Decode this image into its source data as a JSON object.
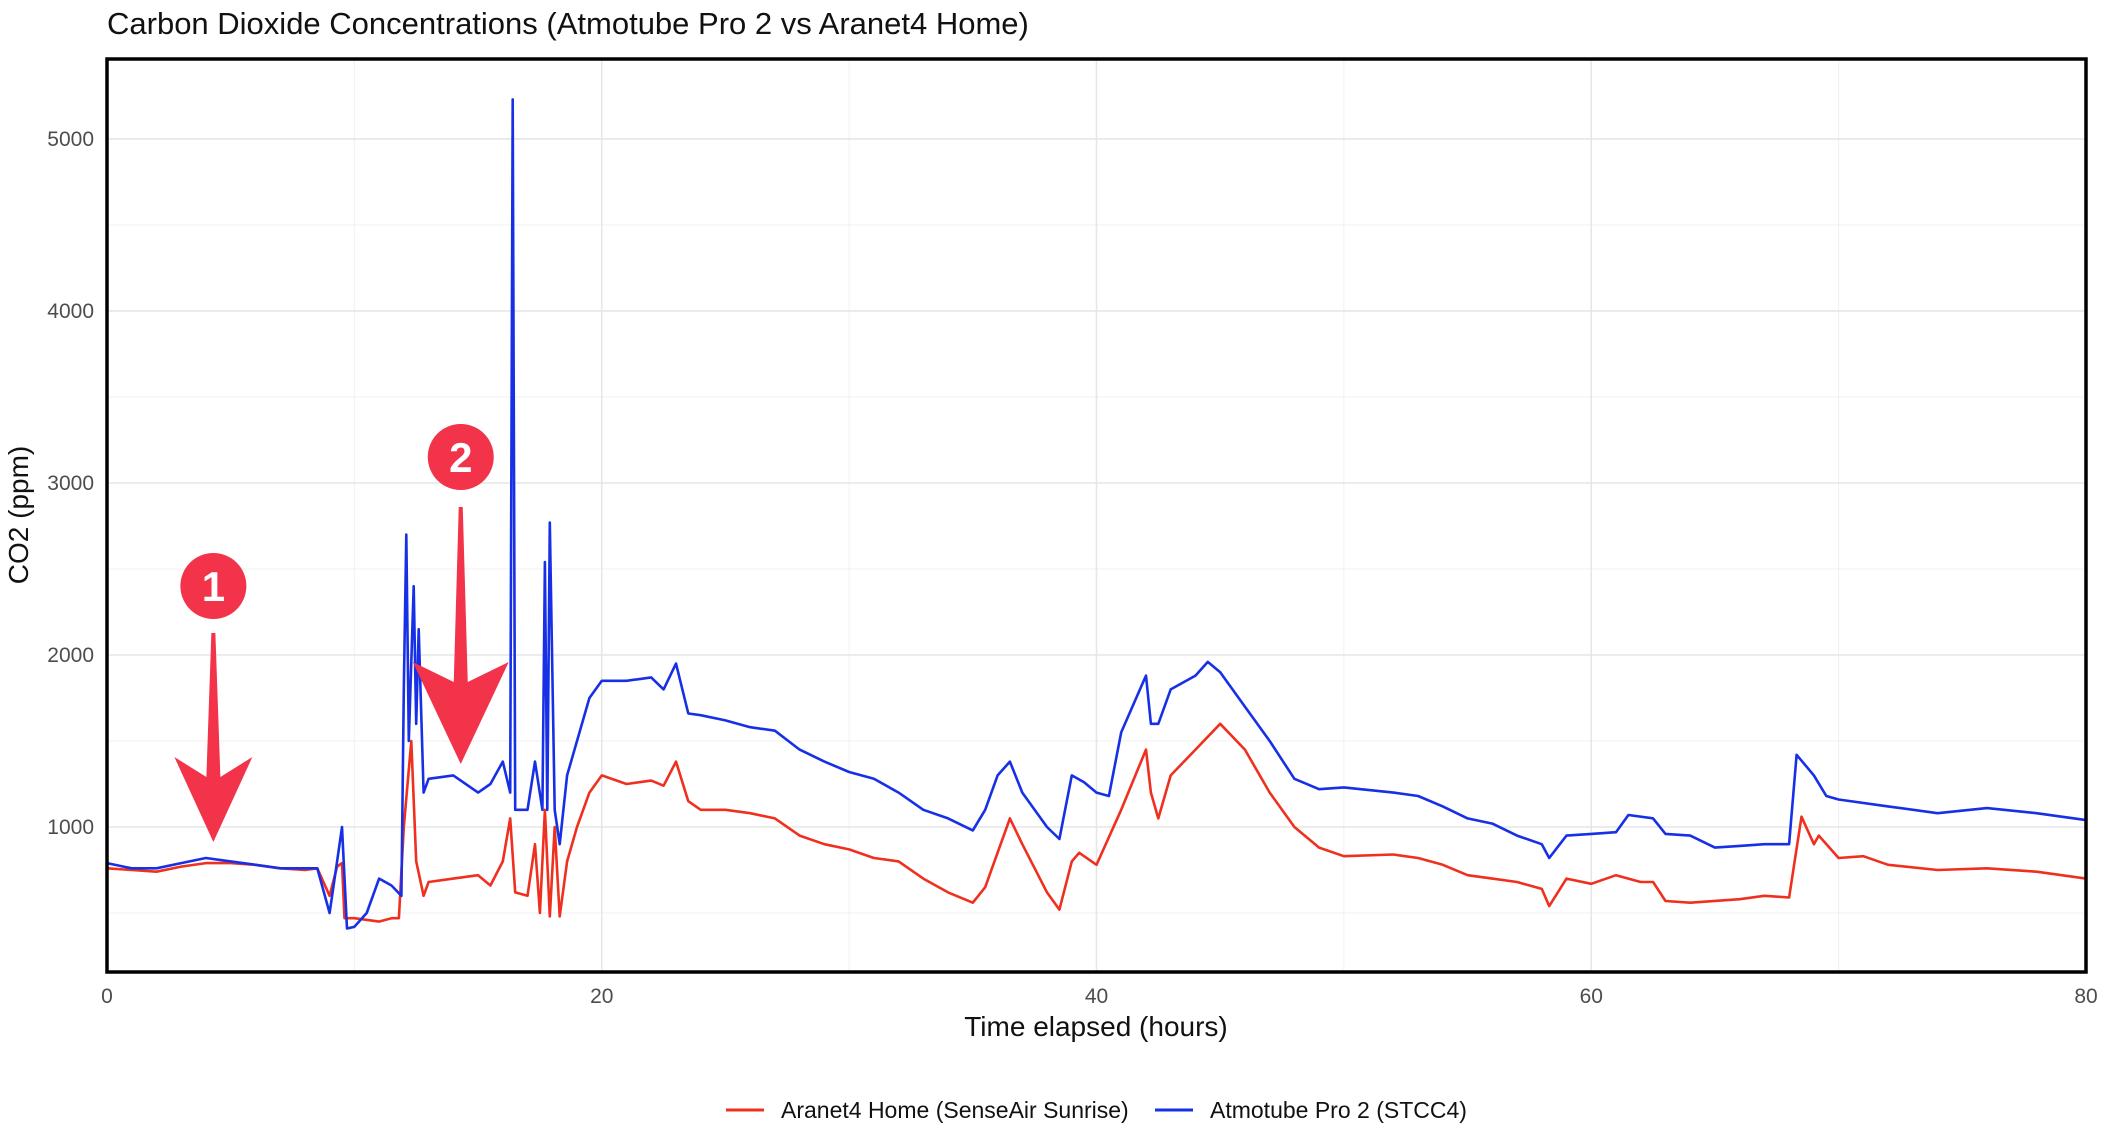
{
  "chart_data": {
    "type": "line",
    "title": "Carbon Dioxide Concentrations (Atmotube Pro 2 vs Aranet4 Home)",
    "xlabel": "Time elapsed (hours)",
    "ylabel": "CO2 (ppm)",
    "xlim": [
      0,
      80
    ],
    "ylim": [
      157,
      5465
    ],
    "xticks": [
      "0",
      "20",
      "40",
      "60",
      "80"
    ],
    "yticks": [
      "1000",
      "2000",
      "3000",
      "4000",
      "5000"
    ],
    "grid": true,
    "legend_position": "bottom",
    "annotations": [
      {
        "label": "1",
        "x": 4.3,
        "color": "#f2334a"
      },
      {
        "label": "2",
        "x": 14.3,
        "color": "#f2334a"
      }
    ],
    "series": [
      {
        "name": "Aranet4 Home (SenseAir Sunrise)",
        "color": "#f0301f",
        "x": [
          0,
          1,
          2,
          3,
          4,
          5,
          6,
          7,
          8,
          8.5,
          9,
          9.3,
          9.5,
          9.6,
          10,
          11,
          11.5,
          11.8,
          12,
          12.3,
          12.5,
          12.8,
          13,
          14,
          15,
          15.5,
          16,
          16.3,
          16.5,
          17,
          17.3,
          17.5,
          17.7,
          17.9,
          18.1,
          18.3,
          18.6,
          19,
          19.5,
          20,
          21,
          22,
          22.5,
          23,
          23.5,
          24,
          25,
          26,
          27,
          28,
          29,
          30,
          31,
          32,
          33,
          34,
          35,
          35.5,
          36.5,
          37,
          38,
          38.5,
          39,
          39.3,
          40,
          41,
          42,
          42.2,
          42.5,
          43,
          44,
          45,
          46,
          47,
          48,
          49,
          50,
          52,
          53,
          54,
          55,
          56,
          57,
          58,
          58.3,
          59,
          60,
          61,
          62,
          62.5,
          63,
          64,
          66,
          67,
          68,
          68.5,
          69,
          69.2,
          70,
          71,
          72,
          74,
          76,
          78,
          80
        ],
        "y": [
          760,
          750,
          740,
          770,
          790,
          790,
          780,
          760,
          750,
          760,
          600,
          770,
          790,
          470,
          470,
          450,
          470,
          470,
          1000,
          1500,
          800,
          600,
          680,
          700,
          720,
          660,
          800,
          1050,
          620,
          600,
          900,
          500,
          1100,
          480,
          1000,
          480,
          800,
          1000,
          1200,
          1300,
          1250,
          1270,
          1240,
          1380,
          1150,
          1100,
          1100,
          1080,
          1050,
          950,
          900,
          870,
          820,
          800,
          700,
          620,
          560,
          650,
          1050,
          900,
          620,
          520,
          800,
          850,
          780,
          1100,
          1450,
          1200,
          1050,
          1300,
          1450,
          1600,
          1450,
          1200,
          1000,
          880,
          830,
          840,
          820,
          780,
          720,
          700,
          680,
          640,
          540,
          700,
          670,
          720,
          680,
          680,
          570,
          560,
          580,
          600,
          590,
          1060,
          900,
          950,
          820,
          830,
          780,
          750,
          760,
          740,
          700
        ]
      },
      {
        "name": "Atmotube Pro 2 (STCC4)",
        "color": "#1730e6",
        "x": [
          0,
          1,
          2,
          3,
          4,
          5,
          6,
          7,
          8,
          8.5,
          9,
          9.3,
          9.5,
          9.7,
          10,
          10.5,
          11,
          11.5,
          11.9,
          12,
          12.1,
          12.2,
          12.4,
          12.5,
          12.6,
          12.8,
          13,
          14,
          15,
          15.5,
          16,
          16.3,
          16.4,
          16.5,
          17,
          17.3,
          17.6,
          17.7,
          17.8,
          17.9,
          18.1,
          18.3,
          18.6,
          19,
          19.5,
          20,
          21,
          22,
          22.5,
          23,
          23.5,
          24,
          25,
          26,
          27,
          28,
          29,
          30,
          31,
          32,
          33,
          34,
          35,
          35.5,
          36,
          36.5,
          37,
          38,
          38.5,
          39,
          39.5,
          40,
          40.5,
          41,
          42,
          42.2,
          42.5,
          43,
          44,
          44.5,
          45,
          46,
          47,
          48,
          49,
          50,
          52,
          53,
          54,
          55,
          56,
          57,
          58,
          58.3,
          59,
          60,
          61,
          61.5,
          62.5,
          63,
          64,
          65,
          66,
          67,
          68,
          68.3,
          69,
          69.5,
          70,
          72,
          74,
          76,
          78,
          80
        ],
        "y": [
          790,
          760,
          760,
          790,
          820,
          800,
          780,
          760,
          760,
          760,
          500,
          800,
          1000,
          410,
          420,
          500,
          700,
          660,
          600,
          1800,
          2700,
          1500,
          2400,
          1600,
          2150,
          1200,
          1280,
          1300,
          1200,
          1250,
          1380,
          1200,
          5230,
          1100,
          1100,
          1380,
          1100,
          2540,
          1100,
          2770,
          1100,
          900,
          1300,
          1500,
          1750,
          1850,
          1850,
          1870,
          1800,
          1950,
          1660,
          1650,
          1620,
          1580,
          1560,
          1450,
          1380,
          1320,
          1280,
          1200,
          1100,
          1050,
          980,
          1100,
          1300,
          1380,
          1200,
          1000,
          930,
          1300,
          1260,
          1200,
          1180,
          1550,
          1880,
          1600,
          1600,
          1800,
          1880,
          1960,
          1900,
          1700,
          1500,
          1280,
          1220,
          1230,
          1200,
          1180,
          1120,
          1050,
          1020,
          950,
          900,
          820,
          950,
          960,
          970,
          1070,
          1050,
          960,
          950,
          880,
          890,
          900,
          900,
          1420,
          1300,
          1180,
          1160,
          1120,
          1080,
          1110,
          1080,
          1040
        ]
      }
    ]
  }
}
